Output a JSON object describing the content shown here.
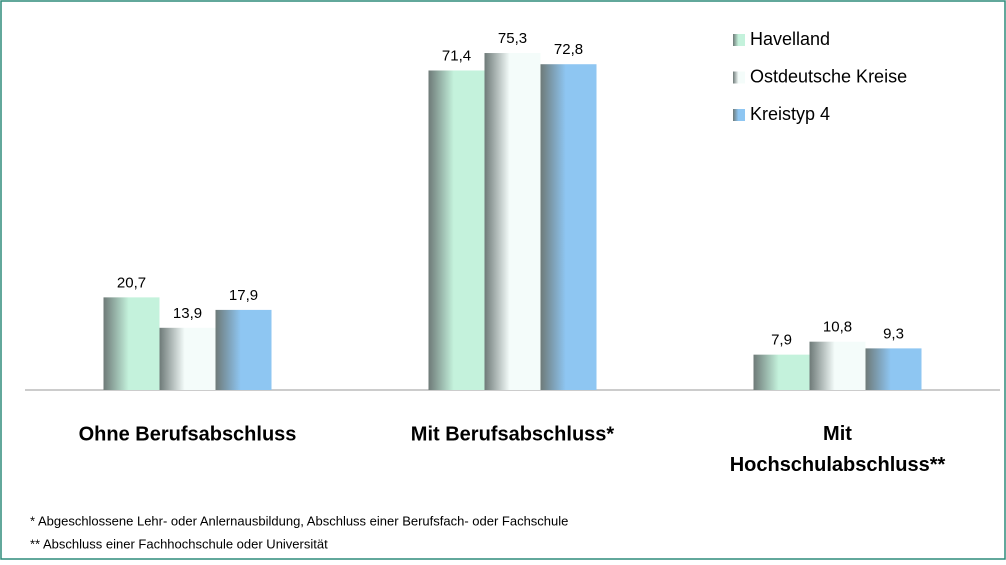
{
  "chart_data": {
    "type": "bar",
    "categories": [
      "Ohne Berufsabschluss",
      "Mit Berufsabschluss*",
      "Mit Hochschulabschluss**"
    ],
    "series": [
      {
        "name": "Havelland",
        "color": "#c4f2dc",
        "values": [
          20.7,
          71.4,
          7.9
        ],
        "value_labels": [
          "20,7",
          "71,4",
          "7,9"
        ]
      },
      {
        "name": "Ostdeutsche Kreise",
        "color": "#f4fcfa",
        "values": [
          13.9,
          75.3,
          10.8
        ],
        "value_labels": [
          "13,9",
          "75,3",
          "10,8"
        ]
      },
      {
        "name": "Kreistyp 4",
        "color": "#8ec6f2",
        "values": [
          17.9,
          72.8,
          9.3
        ],
        "value_labels": [
          "17,9",
          "72,8",
          "9,3"
        ]
      }
    ],
    "ylim": [
      0,
      80
    ],
    "legend": "top-right",
    "footnotes": [
      "*  Abgeschlossene Lehr- oder Anlernausbildung, Abschluss einer Berufsfach- oder Fachschule",
      "** Abschluss einer Fachhochschule oder Universität"
    ]
  }
}
